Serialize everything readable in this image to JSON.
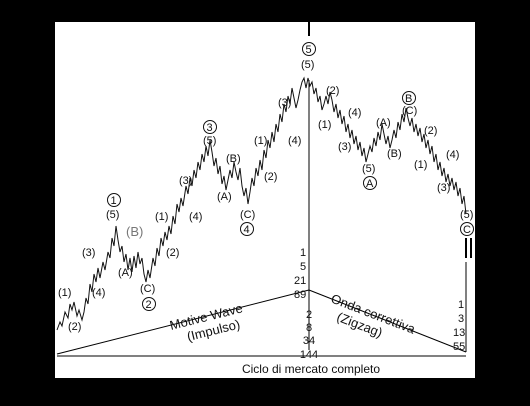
{
  "diagram": {
    "caption": "Ciclo di mercato completo",
    "motive_wave_label_line1": "Motive Wave",
    "motive_wave_label_line2": "(Impulso)",
    "corrective_wave_label_line1": "Onda correttiva",
    "corrective_wave_label_line2": "(Zigzag)",
    "wave_counts": {
      "motive": [
        "1",
        "5",
        "21",
        "89"
      ],
      "center": [
        "2",
        "8",
        "34",
        "144"
      ],
      "corrective": [
        "1",
        "3",
        "13",
        "55"
      ]
    },
    "labels": {
      "w1": "(1)",
      "w2": "(2)",
      "w3": "(3)",
      "w4": "(4)",
      "w5": "(5)",
      "wA": "(A)",
      "wB": "(B)",
      "wC": "(C)",
      "c1": "1",
      "c2": "2",
      "c3": "3",
      "c4": "4",
      "c5": "5",
      "cA": "A",
      "cB": "B",
      "cC": "C"
    }
  }
}
